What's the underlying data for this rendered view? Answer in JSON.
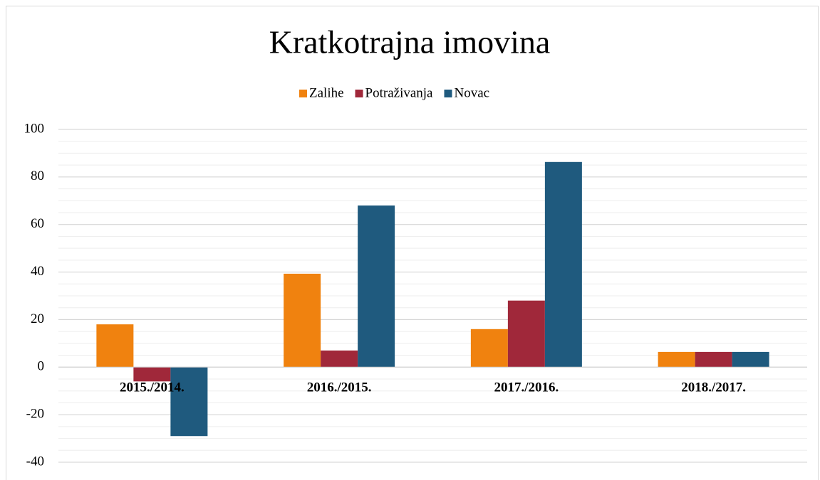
{
  "chart_data": {
    "type": "bar",
    "title": "Kratkotrajna imovina",
    "categories": [
      "2015./2014.",
      "2016./2015.",
      "2017./2016.",
      "2018./2017."
    ],
    "series": [
      {
        "name": "Zalihe",
        "color": "#f0820f",
        "values": [
          18,
          39.3,
          16,
          6.4
        ]
      },
      {
        "name": "Potraživanja",
        "color": "#a0283a",
        "values": [
          -6,
          7,
          28,
          6.4
        ]
      },
      {
        "name": "Novac",
        "color": "#1f5a7e",
        "values": [
          -29,
          68,
          86.3,
          6.4
        ]
      }
    ],
    "ylim": [
      -40,
      100
    ],
    "yticks": [
      -40,
      -20,
      0,
      20,
      40,
      60,
      80,
      100
    ],
    "yminorticks": [
      -35,
      -30,
      -25,
      -15,
      -10,
      -5,
      5,
      10,
      15,
      25,
      30,
      35,
      45,
      50,
      55,
      65,
      70,
      75,
      85,
      90,
      95
    ],
    "grid": true,
    "legend": "top"
  }
}
